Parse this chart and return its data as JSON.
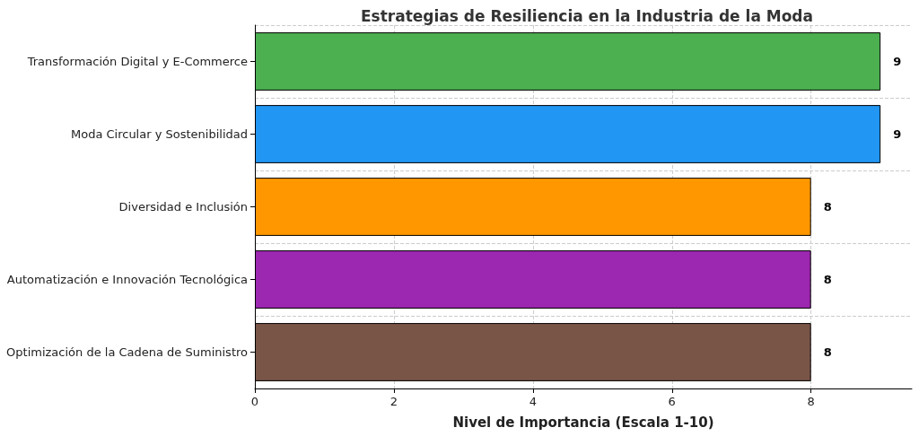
{
  "chart_data": {
    "type": "bar",
    "orientation": "horizontal",
    "title": "Estrategias de Resiliencia en la Industria de la Moda",
    "xlabel": "Nivel de Importancia (Escala 1-10)",
    "categories": [
      "Transformación Digital y E-Commerce",
      "Moda Circular y Sostenibilidad",
      "Diversidad e Inclusión",
      "Automatización e Innovación Tecnológica",
      "Optimización de la Cadena de Suministro"
    ],
    "values": [
      9,
      9,
      8,
      8,
      8
    ],
    "colors": [
      "#4caf50",
      "#2196f3",
      "#ff9800",
      "#9c27b0",
      "#795548"
    ],
    "xlim": [
      0,
      9.45
    ],
    "xticks": [
      0,
      2,
      4,
      6,
      8
    ],
    "grid": true,
    "data_labels": true
  }
}
